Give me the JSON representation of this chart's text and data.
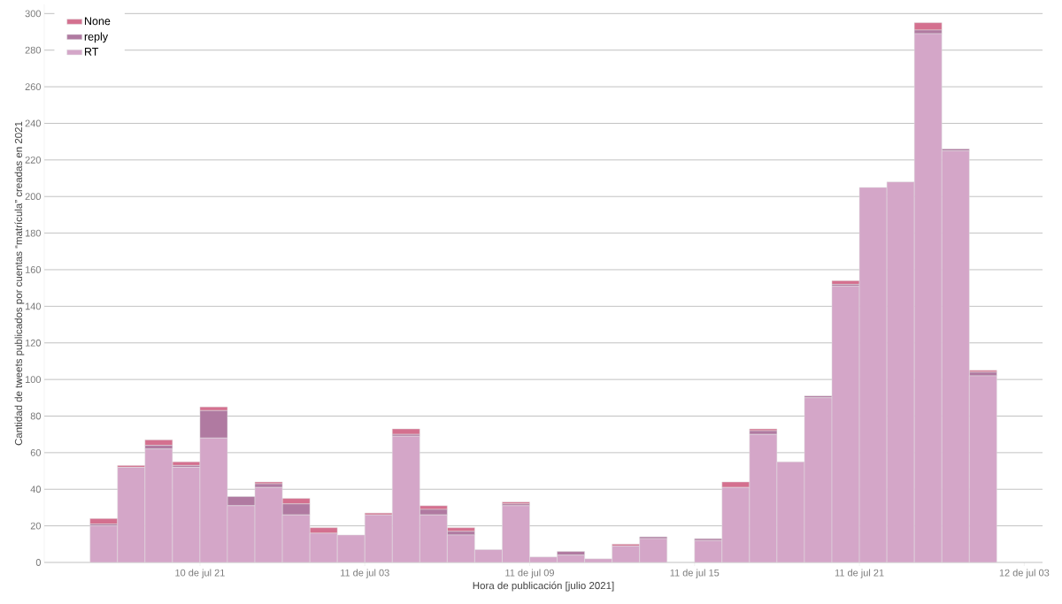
{
  "chart_data": {
    "type": "bar",
    "stacked": true,
    "xlabel": "Hora de publicación [julio 2021]",
    "ylabel": "Cantidad de tweets publicados por cuentas “matrícula” creadas en 2021",
    "x": [
      "2021-07-10T17:30",
      "2021-07-10T18:30",
      "2021-07-10T19:30",
      "2021-07-10T20:30",
      "2021-07-10T21:30",
      "2021-07-10T22:30",
      "2021-07-10T23:30",
      "2021-07-11T00:30",
      "2021-07-11T01:30",
      "2021-07-11T02:30",
      "2021-07-11T03:30",
      "2021-07-11T04:30",
      "2021-07-11T05:30",
      "2021-07-11T06:30",
      "2021-07-11T07:30",
      "2021-07-11T08:30",
      "2021-07-11T09:30",
      "2021-07-11T10:30",
      "2021-07-11T11:30",
      "2021-07-11T12:30",
      "2021-07-11T13:30",
      "2021-07-11T14:30",
      "2021-07-11T15:30",
      "2021-07-11T16:30",
      "2021-07-11T17:30",
      "2021-07-11T18:30",
      "2021-07-11T19:30",
      "2021-07-11T20:30",
      "2021-07-11T21:30",
      "2021-07-11T22:30",
      "2021-07-11T23:30",
      "2021-07-12T00:30",
      "2021-07-12T01:30"
    ],
    "series": [
      {
        "name": "RT",
        "color": "#d4a6c8",
        "values": [
          20,
          52,
          62,
          52,
          68,
          31,
          41,
          26,
          16,
          15,
          26,
          69,
          26,
          15,
          7,
          31,
          3,
          4,
          2,
          9,
          13,
          null,
          12,
          41,
          70,
          55,
          90,
          151,
          205,
          208,
          289,
          225,
          102
        ]
      },
      {
        "name": "reply",
        "color": "#b07aa1",
        "values": [
          1,
          0,
          2,
          1,
          15,
          5,
          2,
          6,
          0,
          0,
          0,
          1,
          3,
          2,
          0,
          1,
          0,
          2,
          0,
          0,
          1,
          null,
          1,
          0,
          2,
          0,
          1,
          1,
          0,
          0,
          2,
          1,
          2
        ]
      },
      {
        "name": "None",
        "color": "#d4708f",
        "values": [
          3,
          1,
          3,
          2,
          2,
          0,
          1,
          3,
          3,
          0,
          1,
          3,
          2,
          2,
          0,
          1,
          0,
          0,
          0,
          1,
          0,
          null,
          0,
          3,
          1,
          0,
          0,
          2,
          0,
          0,
          4,
          0,
          1
        ]
      }
    ],
    "xlim": [
      "2021-07-10T15:20",
      "2021-07-12T03:40"
    ],
    "xticks": [
      {
        "value": "2021-07-10T21:00",
        "label": "10 de jul 21"
      },
      {
        "value": "2021-07-11T03:00",
        "label": "11 de jul 03"
      },
      {
        "value": "2021-07-11T09:00",
        "label": "11 de jul 09"
      },
      {
        "value": "2021-07-11T15:00",
        "label": "11 de jul 15"
      },
      {
        "value": "2021-07-11T21:00",
        "label": "11 de jul 21"
      },
      {
        "value": "2021-07-12T03:00",
        "label": "12 de jul 03"
      }
    ],
    "ylim": [
      0,
      305
    ],
    "yticks": [
      0,
      20,
      40,
      60,
      80,
      100,
      120,
      140,
      160,
      180,
      200,
      220,
      240,
      260,
      280,
      300
    ],
    "grid": "y",
    "legend": "top left"
  }
}
